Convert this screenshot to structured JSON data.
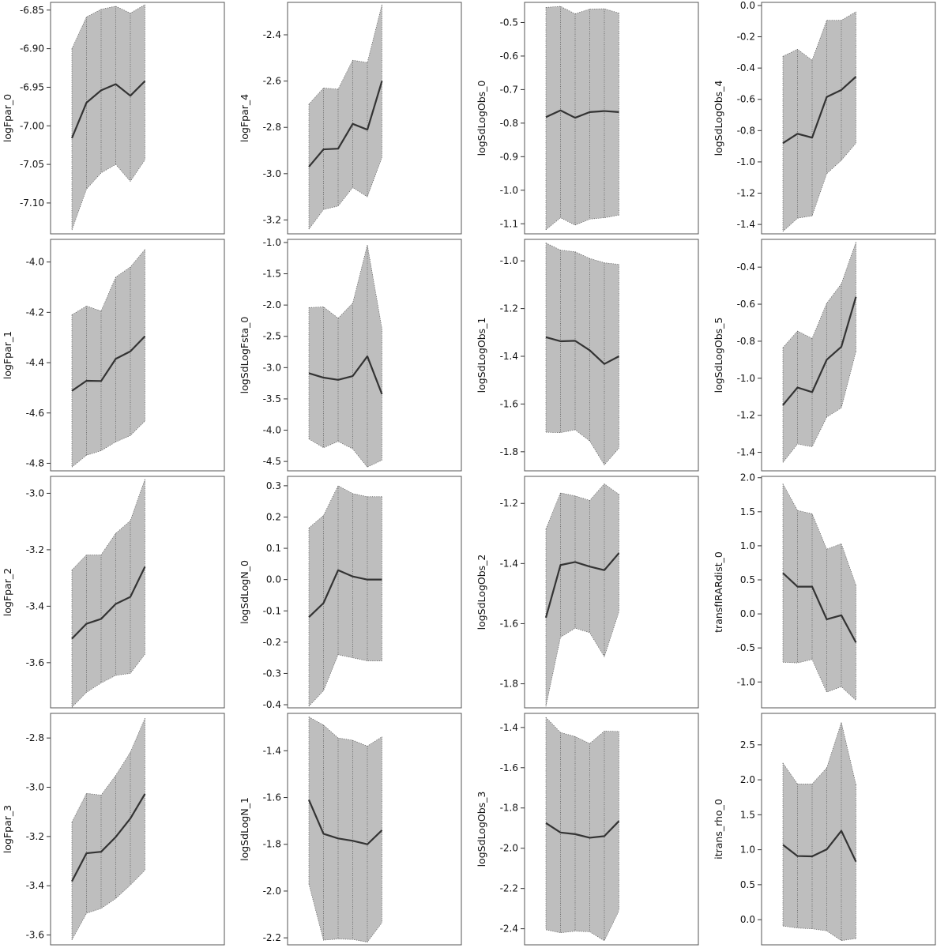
{
  "chart_data": [
    {
      "type": "area",
      "ylabel": "logFpar_0",
      "ylim": [
        -7.14,
        -6.84
      ],
      "yticks": [
        "-6.85",
        "-6.90",
        "-6.95",
        "-7.00",
        "-7.05",
        "-7.10"
      ],
      "x": [
        1,
        2,
        3,
        4,
        5,
        6
      ],
      "series": [
        {
          "mean": [
            -7.016,
            -6.97,
            -6.954,
            -6.946,
            -6.961,
            -6.942
          ],
          "lower": [
            -7.135,
            -7.082,
            -7.061,
            -7.05,
            -7.072,
            -7.044
          ],
          "upper": [
            -6.9,
            -6.859,
            -6.849,
            -6.845,
            -6.854,
            -6.843
          ]
        }
      ]
    },
    {
      "type": "area",
      "ylabel": "logFpar_4",
      "ylim": [
        -3.26,
        -2.26
      ],
      "yticks": [
        "-2.4",
        "-2.6",
        "-2.8",
        "-3.0",
        "-3.2"
      ],
      "x": [
        1,
        2,
        3,
        4,
        5,
        6
      ],
      "series": [
        {
          "mean": [
            -2.97,
            -2.895,
            -2.892,
            -2.785,
            -2.81,
            -2.6
          ],
          "lower": [
            -3.24,
            -3.155,
            -3.14,
            -3.06,
            -3.1,
            -2.93
          ],
          "upper": [
            -2.7,
            -2.63,
            -2.635,
            -2.51,
            -2.52,
            -2.27
          ]
        }
      ]
    },
    {
      "type": "area",
      "ylabel": "logSdLogObs_0",
      "ylim": [
        -1.13,
        -0.44
      ],
      "yticks": [
        "-0.5",
        "-0.6",
        "-0.7",
        "-0.8",
        "-0.9",
        "-1.0",
        "-1.1"
      ],
      "x": [
        1,
        2,
        3,
        4,
        5,
        6
      ],
      "series": [
        {
          "mean": [
            -0.782,
            -0.762,
            -0.784,
            -0.767,
            -0.764,
            -0.767
          ],
          "lower": [
            -1.118,
            -1.082,
            -1.104,
            -1.086,
            -1.082,
            -1.074
          ],
          "upper": [
            -0.455,
            -0.452,
            -0.474,
            -0.46,
            -0.459,
            -0.472
          ]
        }
      ]
    },
    {
      "type": "area",
      "ylabel": "logSdLogObs_4",
      "ylim": [
        -1.46,
        0.02
      ],
      "yticks": [
        "0.0",
        "-0.2",
        "-0.4",
        "-0.6",
        "-0.8",
        "-1.0",
        "-1.2",
        "-1.4"
      ],
      "x": [
        1,
        2,
        3,
        4,
        5,
        6
      ],
      "series": [
        {
          "mean": [
            -0.88,
            -0.82,
            -0.845,
            -0.585,
            -0.54,
            -0.455
          ],
          "lower": [
            -1.445,
            -1.36,
            -1.345,
            -1.075,
            -0.99,
            -0.88
          ],
          "upper": [
            -0.325,
            -0.28,
            -0.35,
            -0.095,
            -0.095,
            -0.04
          ]
        }
      ]
    },
    {
      "type": "area",
      "ylabel": "logFpar_1",
      "ylim": [
        -4.83,
        -3.91
      ],
      "yticks": [
        "-4.0",
        "-4.2",
        "-4.4",
        "-4.6",
        "-4.8"
      ],
      "x": [
        1,
        2,
        3,
        4,
        5,
        6
      ],
      "series": [
        {
          "mean": [
            -4.512,
            -4.472,
            -4.473,
            -4.385,
            -4.355,
            -4.295
          ],
          "lower": [
            -4.815,
            -4.768,
            -4.75,
            -4.715,
            -4.69,
            -4.632
          ],
          "upper": [
            -4.21,
            -4.175,
            -4.195,
            -4.06,
            -4.02,
            -3.95
          ]
        }
      ]
    },
    {
      "type": "area",
      "ylabel": "logSdLogFsta_0",
      "ylim": [
        -4.65,
        -0.95
      ],
      "yticks": [
        "-1.0",
        "-1.5",
        "-2.0",
        "-2.5",
        "-3.0",
        "-3.5",
        "-4.0",
        "-4.5"
      ],
      "x": [
        1,
        2,
        3,
        4,
        5,
        6
      ],
      "series": [
        {
          "mean": [
            -3.09,
            -3.16,
            -3.195,
            -3.135,
            -2.82,
            -3.425
          ],
          "lower": [
            -4.14,
            -4.28,
            -4.18,
            -4.3,
            -4.59,
            -4.48
          ],
          "upper": [
            -2.04,
            -2.03,
            -2.21,
            -1.97,
            -1.04,
            -2.38
          ]
        }
      ]
    },
    {
      "type": "area",
      "ylabel": "logSdLogObs_1",
      "ylim": [
        -1.88,
        -0.91
      ],
      "yticks": [
        "-1.0",
        "-1.2",
        "-1.4",
        "-1.6",
        "-1.8"
      ],
      "x": [
        1,
        2,
        3,
        4,
        5,
        6
      ],
      "series": [
        {
          "mean": [
            -1.32,
            -1.337,
            -1.335,
            -1.375,
            -1.432,
            -1.4
          ],
          "lower": [
            -1.718,
            -1.72,
            -1.708,
            -1.755,
            -1.855,
            -1.785
          ],
          "upper": [
            -0.925,
            -0.955,
            -0.962,
            -0.99,
            -1.008,
            -1.015
          ]
        }
      ]
    },
    {
      "type": "area",
      "ylabel": "logSdLogObs_5",
      "ylim": [
        -1.5,
        -0.25
      ],
      "yticks": [
        "-0.4",
        "-0.6",
        "-0.8",
        "-1.0",
        "-1.2",
        "-1.4"
      ],
      "x": [
        1,
        2,
        3,
        4,
        5,
        6
      ],
      "series": [
        {
          "mean": [
            -1.145,
            -1.05,
            -1.075,
            -0.9,
            -0.83,
            -0.56
          ],
          "lower": [
            -1.455,
            -1.355,
            -1.37,
            -1.21,
            -1.16,
            -0.855
          ],
          "upper": [
            -0.835,
            -0.745,
            -0.785,
            -0.595,
            -0.49,
            -0.265
          ]
        }
      ]
    },
    {
      "type": "area",
      "ylabel": "logFpar_2",
      "ylim": [
        -3.76,
        -2.94
      ],
      "yticks": [
        "-3.0",
        "-3.2",
        "-3.4",
        "-3.6"
      ],
      "x": [
        1,
        2,
        3,
        4,
        5,
        6
      ],
      "series": [
        {
          "mean": [
            -3.515,
            -3.462,
            -3.445,
            -3.392,
            -3.367,
            -3.26
          ],
          "lower": [
            -3.758,
            -3.705,
            -3.672,
            -3.645,
            -3.638,
            -3.57
          ],
          "upper": [
            -3.272,
            -3.218,
            -3.218,
            -3.142,
            -3.097,
            -2.95
          ]
        }
      ]
    },
    {
      "type": "area",
      "ylabel": "logSdLogN_0",
      "ylim": [
        -0.41,
        0.33
      ],
      "yticks": [
        "0.3",
        "0.2",
        "0.1",
        "0.0",
        "-0.1",
        "-0.2",
        "-0.3",
        "-0.4"
      ],
      "x": [
        1,
        2,
        3,
        4,
        5,
        6
      ],
      "series": [
        {
          "mean": [
            -0.12,
            -0.075,
            0.03,
            0.01,
            0.0,
            0.0
          ],
          "lower": [
            -0.405,
            -0.355,
            -0.24,
            -0.25,
            -0.26,
            -0.26
          ],
          "upper": [
            0.165,
            0.205,
            0.3,
            0.275,
            0.265,
            0.265
          ]
        }
      ]
    },
    {
      "type": "area",
      "ylabel": "logSdLogObs_2",
      "ylim": [
        -1.88,
        -1.11
      ],
      "yticks": [
        "-1.2",
        "-1.4",
        "-1.6",
        "-1.8"
      ],
      "x": [
        1,
        2,
        3,
        4,
        5,
        6
      ],
      "series": [
        {
          "mean": [
            -1.58,
            -1.405,
            -1.395,
            -1.41,
            -1.422,
            -1.365
          ],
          "lower": [
            -1.875,
            -1.645,
            -1.615,
            -1.63,
            -1.71,
            -1.56
          ],
          "upper": [
            -1.285,
            -1.165,
            -1.175,
            -1.19,
            -1.135,
            -1.17
          ]
        }
      ]
    },
    {
      "type": "area",
      "ylabel": "transfIRARdist_0",
      "ylim": [
        -1.38,
        2.02
      ],
      "yticks": [
        "2.0",
        "1.5",
        "1.0",
        "0.5",
        "0.0",
        "-0.5",
        "-1.0"
      ],
      "x": [
        1,
        2,
        3,
        4,
        5,
        6
      ],
      "series": [
        {
          "mean": [
            0.6,
            0.4,
            0.4,
            -0.08,
            -0.02,
            -0.42
          ],
          "lower": [
            -0.71,
            -0.72,
            -0.67,
            -1.15,
            -1.07,
            -1.27
          ],
          "upper": [
            1.91,
            1.52,
            1.47,
            0.95,
            1.03,
            0.42
          ]
        }
      ]
    },
    {
      "type": "area",
      "ylabel": "logFpar_3",
      "ylim": [
        -3.64,
        -2.7
      ],
      "yticks": [
        "-2.8",
        "-3.0",
        "-3.2",
        "-3.4",
        "-3.6"
      ],
      "x": [
        1,
        2,
        3,
        4,
        5,
        6
      ],
      "series": [
        {
          "mean": [
            -3.382,
            -3.268,
            -3.262,
            -3.202,
            -3.127,
            -3.027
          ],
          "lower": [
            -3.62,
            -3.512,
            -3.492,
            -3.452,
            -3.397,
            -3.337
          ],
          "upper": [
            -3.142,
            -3.025,
            -3.032,
            -2.952,
            -2.858,
            -2.72
          ]
        }
      ]
    },
    {
      "type": "area",
      "ylabel": "logSdLogN_1",
      "ylim": [
        -2.23,
        -1.24
      ],
      "yticks": [
        "-1.4",
        "-1.6",
        "-1.8",
        "-2.0",
        "-2.2"
      ],
      "x": [
        1,
        2,
        3,
        4,
        5,
        6
      ],
      "series": [
        {
          "mean": [
            -1.61,
            -1.755,
            -1.775,
            -1.785,
            -1.8,
            -1.74
          ],
          "lower": [
            -1.97,
            -2.21,
            -2.205,
            -2.207,
            -2.218,
            -2.135
          ],
          "upper": [
            -1.255,
            -1.29,
            -1.345,
            -1.355,
            -1.38,
            -1.34
          ]
        }
      ]
    },
    {
      "type": "area",
      "ylabel": "logSdLogObs_3",
      "ylim": [
        -2.48,
        -1.33
      ],
      "yticks": [
        "-1.4",
        "-1.6",
        "-1.8",
        "-2.0",
        "-2.2",
        "-2.4"
      ],
      "x": [
        1,
        2,
        3,
        4,
        5,
        6
      ],
      "series": [
        {
          "mean": [
            -1.875,
            -1.922,
            -1.93,
            -1.948,
            -1.94,
            -1.865
          ],
          "lower": [
            -2.405,
            -2.42,
            -2.412,
            -2.415,
            -2.46,
            -2.31
          ],
          "upper": [
            -1.35,
            -1.425,
            -1.445,
            -1.48,
            -1.418,
            -1.42
          ]
        }
      ]
    },
    {
      "type": "area",
      "ylabel": "itrans_rho_0",
      "ylim": [
        -0.36,
        2.95
      ],
      "yticks": [
        "2.5",
        "2.0",
        "1.5",
        "1.0",
        "0.5",
        "0.0"
      ],
      "x": [
        1,
        2,
        3,
        4,
        5,
        6
      ],
      "series": [
        {
          "mean": [
            1.07,
            0.91,
            0.905,
            1.005,
            1.27,
            0.83
          ],
          "lower": [
            -0.09,
            -0.12,
            -0.13,
            -0.16,
            -0.3,
            -0.27
          ],
          "upper": [
            2.24,
            1.94,
            1.94,
            2.17,
            2.82,
            1.93
          ]
        }
      ]
    }
  ]
}
